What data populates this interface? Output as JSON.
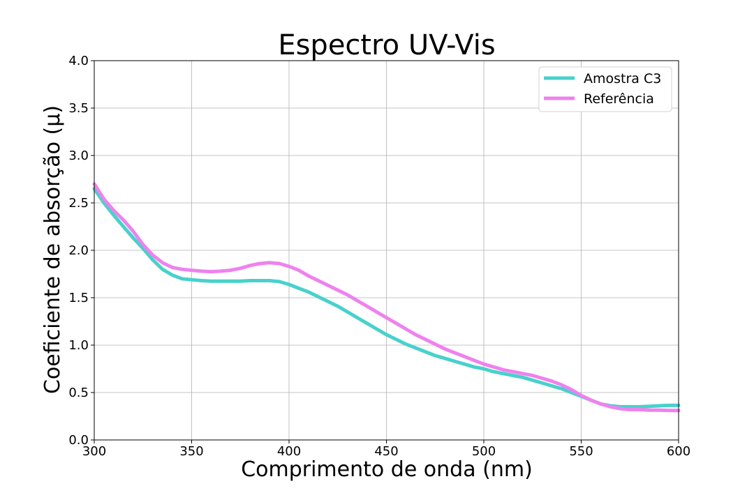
{
  "chart_data": {
    "type": "line",
    "title": "Espectro UV-Vis",
    "xlabel": "Comprimento de onda (nm)",
    "ylabel": "Coeficiente de absorção (μ)",
    "xlim": [
      300,
      600
    ],
    "ylim": [
      0,
      4.0
    ],
    "xticks": [
      "300",
      "350",
      "400",
      "450",
      "500",
      "550",
      "600"
    ],
    "yticks": [
      "0.0",
      "0.5",
      "1.0",
      "1.5",
      "2.0",
      "2.5",
      "3.0",
      "3.5",
      "4.0"
    ],
    "grid": true,
    "legend_position": "top-right",
    "series": [
      {
        "name": "Amostra C3",
        "color": "#48d1cc",
        "x": [
          300,
          305,
          310,
          315,
          320,
          325,
          330,
          335,
          340,
          345,
          350,
          355,
          360,
          365,
          370,
          375,
          380,
          385,
          390,
          395,
          400,
          405,
          410,
          415,
          420,
          425,
          430,
          435,
          440,
          445,
          450,
          455,
          460,
          465,
          470,
          475,
          480,
          485,
          490,
          495,
          500,
          505,
          510,
          515,
          520,
          525,
          530,
          535,
          540,
          545,
          550,
          555,
          560,
          565,
          570,
          575,
          580,
          585,
          590,
          595,
          600
        ],
        "y": [
          2.65,
          2.5,
          2.37,
          2.25,
          2.13,
          2.02,
          1.9,
          1.8,
          1.74,
          1.7,
          1.69,
          1.68,
          1.675,
          1.675,
          1.675,
          1.675,
          1.68,
          1.68,
          1.68,
          1.67,
          1.64,
          1.6,
          1.56,
          1.51,
          1.46,
          1.41,
          1.35,
          1.29,
          1.23,
          1.17,
          1.11,
          1.06,
          1.01,
          0.97,
          0.93,
          0.89,
          0.86,
          0.83,
          0.8,
          0.77,
          0.75,
          0.72,
          0.7,
          0.68,
          0.66,
          0.63,
          0.6,
          0.57,
          0.54,
          0.5,
          0.46,
          0.42,
          0.38,
          0.36,
          0.35,
          0.35,
          0.35,
          0.355,
          0.36,
          0.365,
          0.365
        ]
      },
      {
        "name": "Referência",
        "color": "#ee82ee",
        "x": [
          300,
          305,
          310,
          315,
          320,
          325,
          330,
          335,
          340,
          345,
          350,
          355,
          360,
          365,
          370,
          375,
          380,
          385,
          390,
          395,
          400,
          405,
          410,
          415,
          420,
          425,
          430,
          435,
          440,
          445,
          450,
          455,
          460,
          465,
          470,
          475,
          480,
          485,
          490,
          495,
          500,
          505,
          510,
          515,
          520,
          525,
          530,
          535,
          540,
          545,
          550,
          555,
          560,
          565,
          570,
          575,
          580,
          585,
          590,
          595,
          600
        ],
        "y": [
          2.7,
          2.54,
          2.42,
          2.32,
          2.2,
          2.06,
          1.95,
          1.87,
          1.82,
          1.8,
          1.79,
          1.78,
          1.775,
          1.78,
          1.79,
          1.81,
          1.84,
          1.86,
          1.87,
          1.86,
          1.83,
          1.79,
          1.73,
          1.68,
          1.63,
          1.58,
          1.53,
          1.47,
          1.41,
          1.35,
          1.29,
          1.23,
          1.17,
          1.11,
          1.06,
          1.01,
          0.96,
          0.92,
          0.88,
          0.84,
          0.8,
          0.77,
          0.74,
          0.72,
          0.7,
          0.68,
          0.65,
          0.62,
          0.58,
          0.53,
          0.47,
          0.42,
          0.38,
          0.35,
          0.33,
          0.32,
          0.32,
          0.315,
          0.315,
          0.31,
          0.31
        ]
      }
    ]
  }
}
